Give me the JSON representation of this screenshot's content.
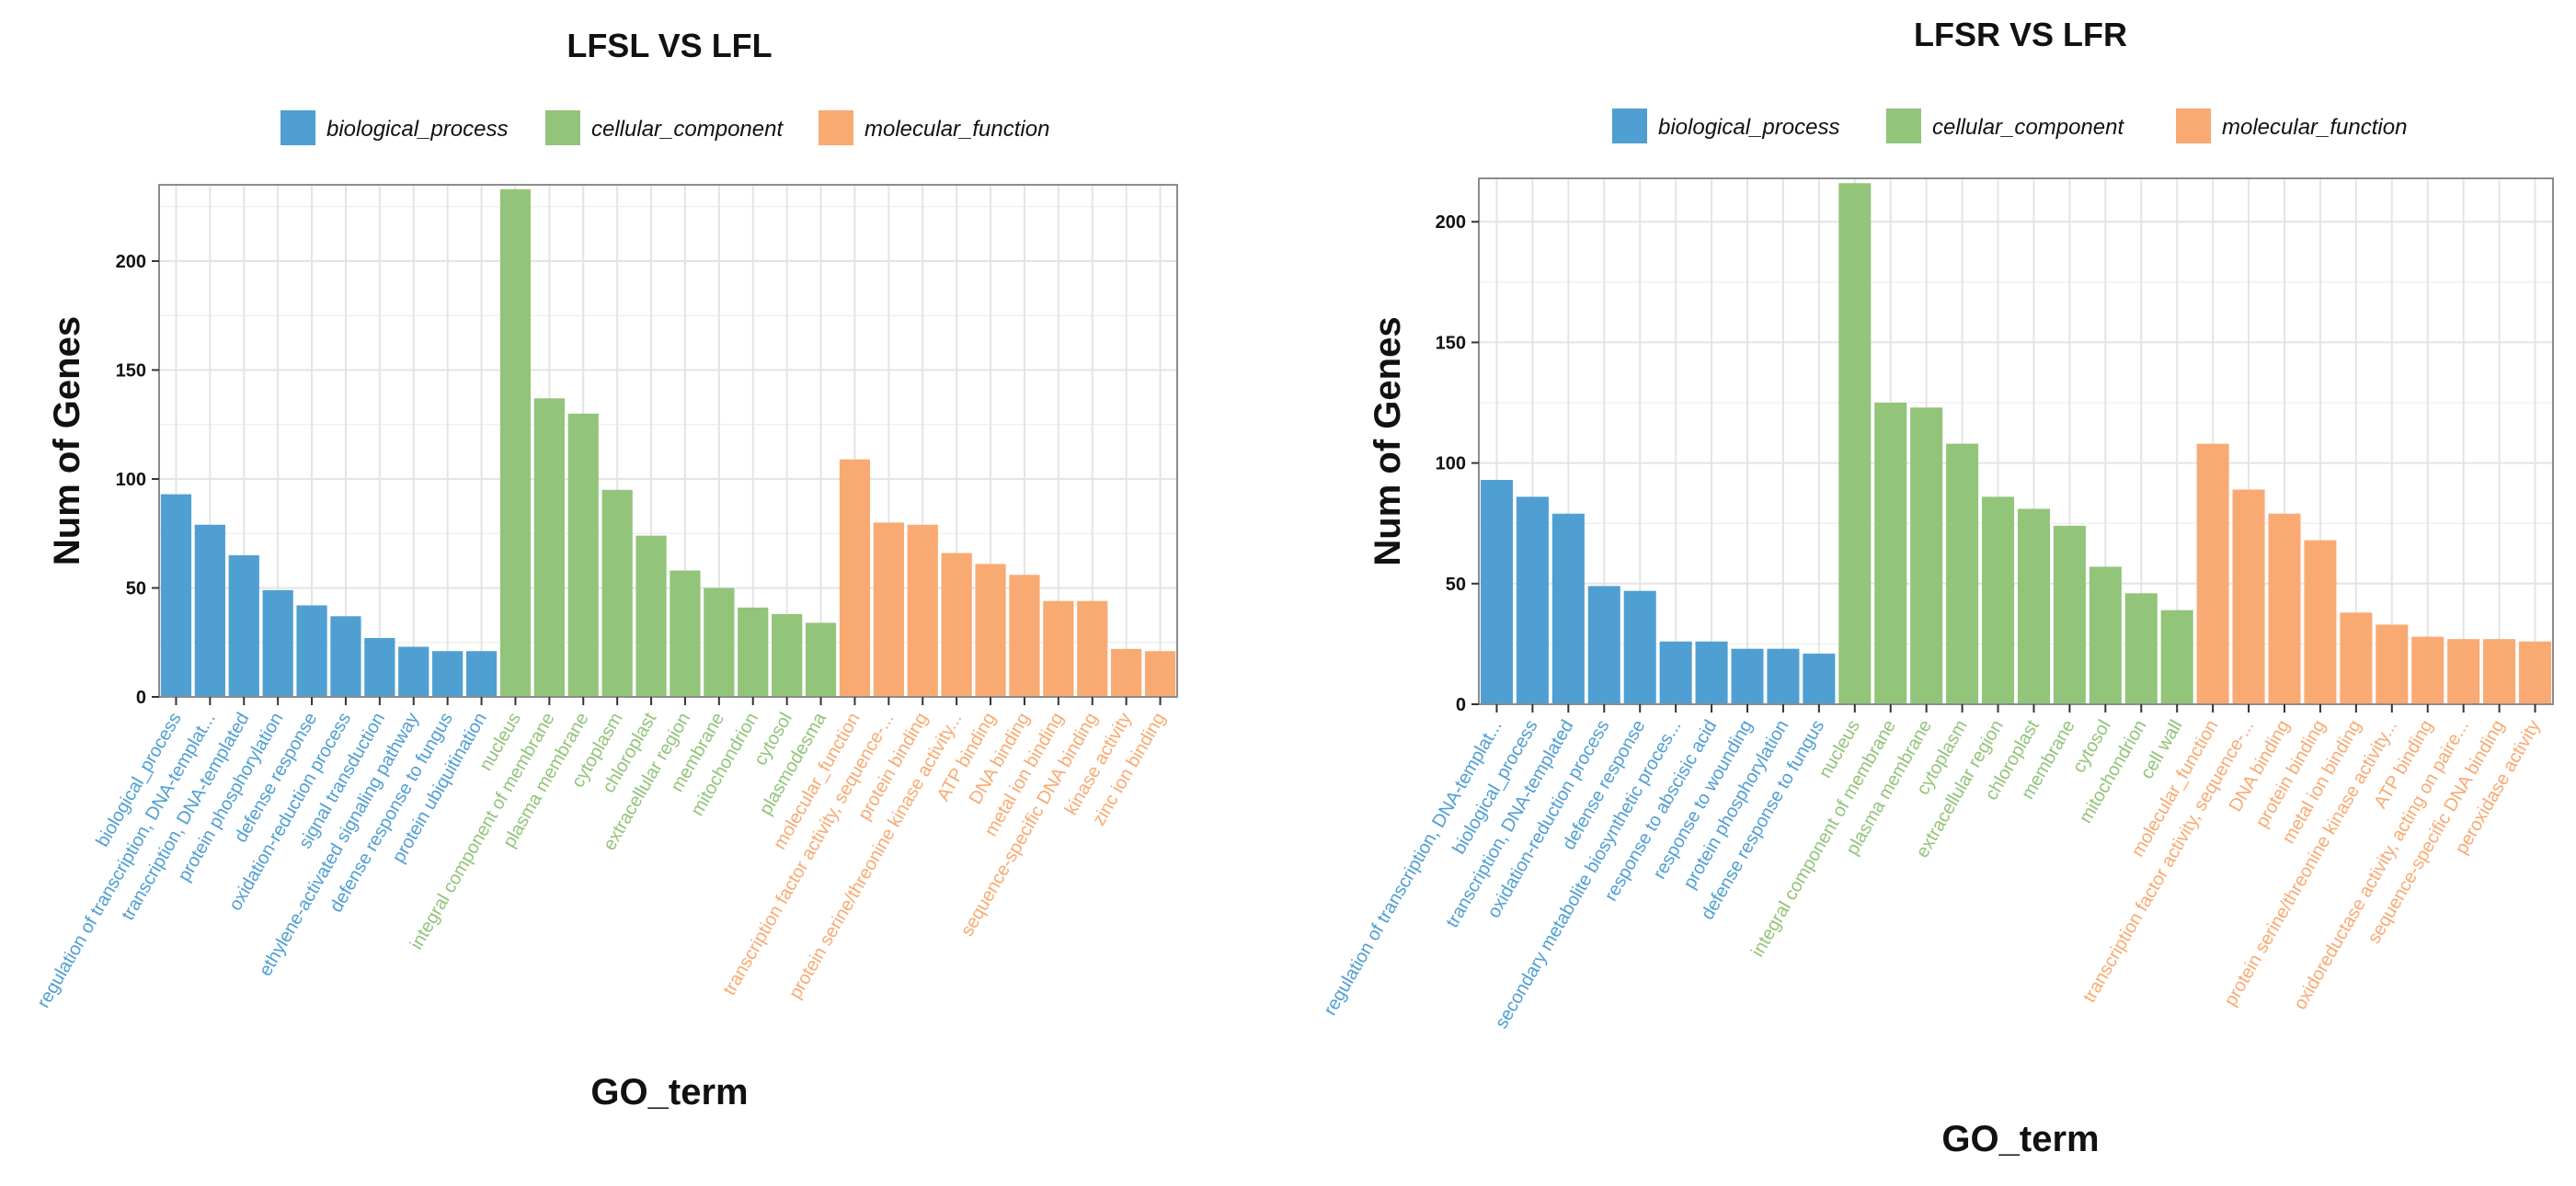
{
  "colors": {
    "biological_process": "#4f9fd2",
    "cellular_component": "#92c47a",
    "molecular_function": "#f9aa72",
    "panel_bg": "#ffffff",
    "grid_major": "#e4e4e4",
    "grid_minor": "#f0f0f0",
    "frame": "#8c8c8c",
    "text": "#111111"
  },
  "chart_data": [
    {
      "type": "bar",
      "title": "LFSL VS LFL",
      "xlabel": "GO_term",
      "ylabel": "Num of Genes",
      "ylim": [
        0,
        235
      ],
      "yticks": [
        0,
        50,
        100,
        150,
        200
      ],
      "legend_position": "top",
      "legend": [
        {
          "key": "biological_process",
          "label": "biological_process"
        },
        {
          "key": "cellular_component",
          "label": "cellular_component"
        },
        {
          "key": "molecular_function",
          "label": "molecular_function"
        }
      ],
      "bars": [
        {
          "label": "biological_process",
          "value": 93,
          "group": "biological_process"
        },
        {
          "label": "regulation of transcription, DNA-templat...",
          "value": 79,
          "group": "biological_process"
        },
        {
          "label": "transcription, DNA-templated",
          "value": 65,
          "group": "biological_process"
        },
        {
          "label": "protein phosphorylation",
          "value": 49,
          "group": "biological_process"
        },
        {
          "label": "defense response",
          "value": 42,
          "group": "biological_process"
        },
        {
          "label": "oxidation-reduction process",
          "value": 37,
          "group": "biological_process"
        },
        {
          "label": "signal transduction",
          "value": 27,
          "group": "biological_process"
        },
        {
          "label": "ethylene-activated signaling pathway",
          "value": 23,
          "group": "biological_process"
        },
        {
          "label": "defense response to fungus",
          "value": 21,
          "group": "biological_process"
        },
        {
          "label": "protein ubiquitination",
          "value": 21,
          "group": "biological_process"
        },
        {
          "label": "nucleus",
          "value": 233,
          "group": "cellular_component"
        },
        {
          "label": "integral component of membrane",
          "value": 137,
          "group": "cellular_component"
        },
        {
          "label": "plasma membrane",
          "value": 130,
          "group": "cellular_component"
        },
        {
          "label": "cytoplasm",
          "value": 95,
          "group": "cellular_component"
        },
        {
          "label": "chloroplast",
          "value": 74,
          "group": "cellular_component"
        },
        {
          "label": "extracellular region",
          "value": 58,
          "group": "cellular_component"
        },
        {
          "label": "membrane",
          "value": 50,
          "group": "cellular_component"
        },
        {
          "label": "mitochondrion",
          "value": 41,
          "group": "cellular_component"
        },
        {
          "label": "cytosol",
          "value": 38,
          "group": "cellular_component"
        },
        {
          "label": "plasmodesma",
          "value": 34,
          "group": "cellular_component"
        },
        {
          "label": "molecular_function",
          "value": 109,
          "group": "molecular_function"
        },
        {
          "label": "transcription factor activity, sequence-...",
          "value": 80,
          "group": "molecular_function"
        },
        {
          "label": "protein binding",
          "value": 79,
          "group": "molecular_function"
        },
        {
          "label": "protein serine/threonine kinase activity...",
          "value": 66,
          "group": "molecular_function"
        },
        {
          "label": "ATP binding",
          "value": 61,
          "group": "molecular_function"
        },
        {
          "label": "DNA binding",
          "value": 56,
          "group": "molecular_function"
        },
        {
          "label": "metal ion binding",
          "value": 44,
          "group": "molecular_function"
        },
        {
          "label": "sequence-specific DNA binding",
          "value": 44,
          "group": "molecular_function"
        },
        {
          "label": "kinase activity",
          "value": 22,
          "group": "molecular_function"
        },
        {
          "label": "zinc ion binding",
          "value": 21,
          "group": "molecular_function"
        }
      ]
    },
    {
      "type": "bar",
      "title": "LFSR VS LFR",
      "xlabel": "GO_term",
      "ylabel": "Num of Genes",
      "ylim": [
        0,
        218
      ],
      "yticks": [
        0,
        50,
        100,
        150,
        200
      ],
      "legend_position": "top",
      "legend": [
        {
          "key": "biological_process",
          "label": "biological_process"
        },
        {
          "key": "cellular_component",
          "label": "cellular_component"
        },
        {
          "key": "molecular_function",
          "label": "molecular_function"
        }
      ],
      "bars": [
        {
          "label": "regulation of transcription, DNA-templat...",
          "value": 93,
          "group": "biological_process"
        },
        {
          "label": "biological_process",
          "value": 86,
          "group": "biological_process"
        },
        {
          "label": "transcription, DNA-templated",
          "value": 79,
          "group": "biological_process"
        },
        {
          "label": "oxidation-reduction process",
          "value": 49,
          "group": "biological_process"
        },
        {
          "label": "defense response",
          "value": 47,
          "group": "biological_process"
        },
        {
          "label": "secondary metabolite biosynthetic proces...",
          "value": 26,
          "group": "biological_process"
        },
        {
          "label": "response to abscisic acid",
          "value": 26,
          "group": "biological_process"
        },
        {
          "label": "response to wounding",
          "value": 23,
          "group": "biological_process"
        },
        {
          "label": "protein phosphorylation",
          "value": 23,
          "group": "biological_process"
        },
        {
          "label": "defense response to fungus",
          "value": 21,
          "group": "biological_process"
        },
        {
          "label": "nucleus",
          "value": 216,
          "group": "cellular_component"
        },
        {
          "label": "integral component of membrane",
          "value": 125,
          "group": "cellular_component"
        },
        {
          "label": "plasma membrane",
          "value": 123,
          "group": "cellular_component"
        },
        {
          "label": "cytoplasm",
          "value": 108,
          "group": "cellular_component"
        },
        {
          "label": "extracellular region",
          "value": 86,
          "group": "cellular_component"
        },
        {
          "label": "chloroplast",
          "value": 81,
          "group": "cellular_component"
        },
        {
          "label": "membrane",
          "value": 74,
          "group": "cellular_component"
        },
        {
          "label": "cytosol",
          "value": 57,
          "group": "cellular_component"
        },
        {
          "label": "mitochondrion",
          "value": 46,
          "group": "cellular_component"
        },
        {
          "label": "cell wall",
          "value": 39,
          "group": "cellular_component"
        },
        {
          "label": "molecular_function",
          "value": 108,
          "group": "molecular_function"
        },
        {
          "label": "transcription factor activity, sequence-...",
          "value": 89,
          "group": "molecular_function"
        },
        {
          "label": "DNA binding",
          "value": 79,
          "group": "molecular_function"
        },
        {
          "label": "protein binding",
          "value": 68,
          "group": "molecular_function"
        },
        {
          "label": "metal ion binding",
          "value": 38,
          "group": "molecular_function"
        },
        {
          "label": "protein serine/threonine kinase activity...",
          "value": 33,
          "group": "molecular_function"
        },
        {
          "label": "ATP binding",
          "value": 28,
          "group": "molecular_function"
        },
        {
          "label": "oxidoreductase activity, acting on paire...",
          "value": 27,
          "group": "molecular_function"
        },
        {
          "label": "sequence-specific DNA binding",
          "value": 27,
          "group": "molecular_function"
        },
        {
          "label": "peroxidase activity",
          "value": 26,
          "group": "molecular_function"
        }
      ]
    }
  ]
}
